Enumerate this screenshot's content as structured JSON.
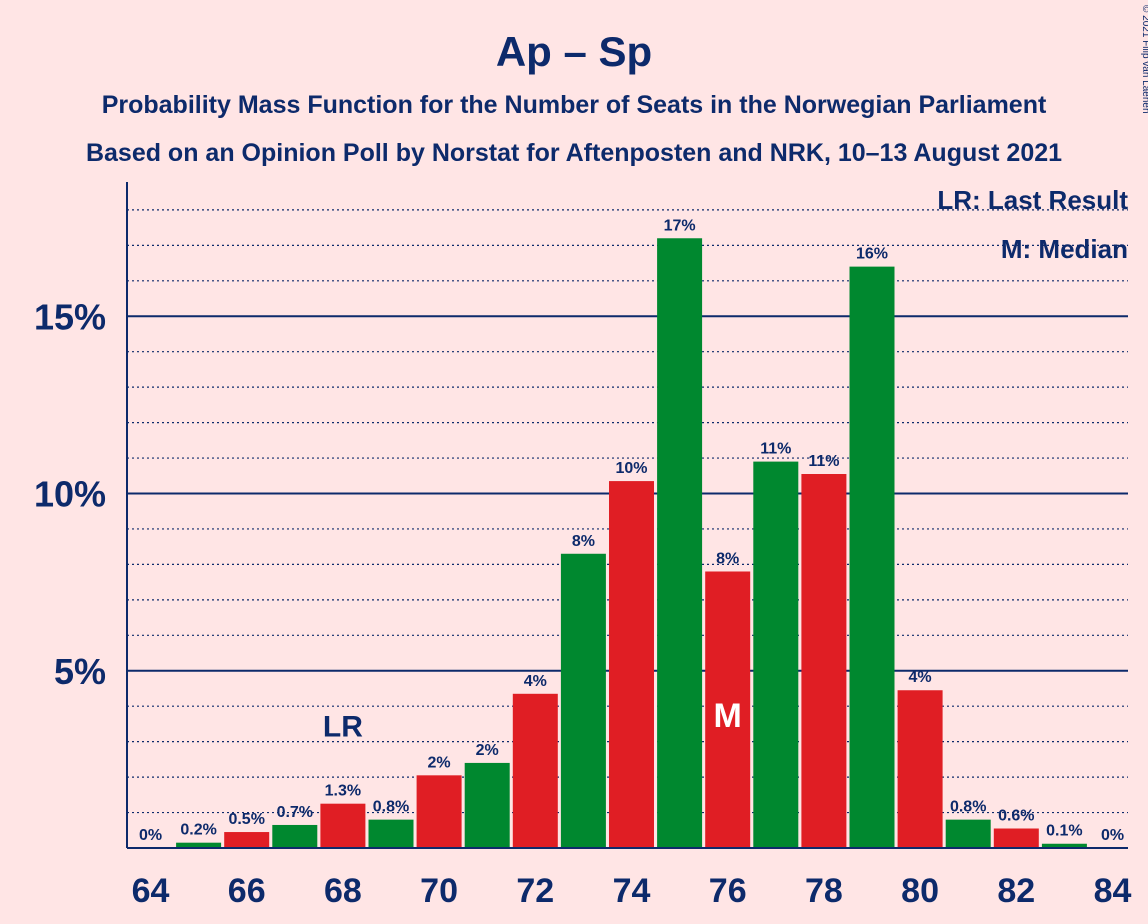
{
  "copyright": "© 2021 Filip van Laenen",
  "legend": {
    "last_result": "LR: Last Result",
    "median": "M: Median"
  },
  "colors": {
    "background": "#FFE5E5",
    "text": "#0D2A6B",
    "green": "#00882F",
    "red": "#E01E24",
    "axis": "#0D2A6B"
  },
  "chart_data": {
    "type": "bar",
    "title": "Ap – Sp",
    "subtitle": [
      "Probability Mass Function for the Number of Seats in the Norwegian Parliament",
      "Based on an Opinion Poll by Norstat for Aftenposten and NRK, 10–13 August 2021"
    ],
    "xlabel": "",
    "ylabel": "",
    "x": [
      64,
      65,
      66,
      67,
      68,
      69,
      70,
      71,
      72,
      73,
      74,
      75,
      76,
      77,
      78,
      79,
      80,
      81,
      82,
      83,
      84
    ],
    "values": [
      0,
      0.15,
      0.45,
      0.65,
      1.25,
      0.8,
      2.05,
      2.4,
      4.35,
      8.3,
      10.35,
      17.2,
      7.8,
      10.9,
      10.55,
      16.4,
      4.45,
      0.8,
      0.55,
      0.12,
      0
    ],
    "value_labels": [
      "0%",
      "0.2%",
      "0.5%",
      "0.7%",
      "1.3%",
      "0.8%",
      "2%",
      "2%",
      "4%",
      "8%",
      "10%",
      "17%",
      "8%",
      "11%",
      "11%",
      "16%",
      "4%",
      "0.8%",
      "0.6%",
      "0.1%",
      "0%"
    ],
    "bar_colors": [
      "red",
      "green",
      "red",
      "green",
      "red",
      "green",
      "red",
      "green",
      "red",
      "green",
      "red",
      "green",
      "red",
      "green",
      "red",
      "green",
      "red",
      "green",
      "red",
      "green",
      "red"
    ],
    "x_ticks": [
      64,
      66,
      68,
      70,
      72,
      74,
      76,
      78,
      80,
      82,
      84
    ],
    "x_tick_labels": [
      "64",
      "66",
      "68",
      "70",
      "72",
      "74",
      "76",
      "78",
      "80",
      "82",
      "84"
    ],
    "y_ticks": [
      5,
      10,
      15
    ],
    "y_tick_labels": [
      "5%",
      "10%",
      "15%"
    ],
    "ylim": [
      0,
      18.8
    ],
    "xlim": [
      63.5,
      84.5
    ],
    "minor_grid_step": 1,
    "grid": true,
    "markers": {
      "last_result": {
        "x": 68,
        "label": "LR"
      },
      "median": {
        "x": 76,
        "label": "M"
      }
    },
    "legend_position": "top-right"
  }
}
